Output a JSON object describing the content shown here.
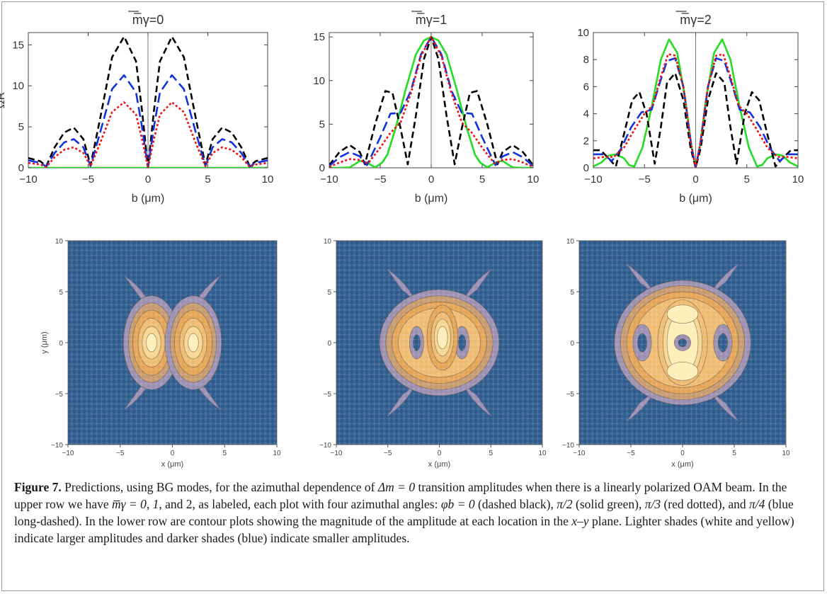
{
  "figure": {
    "caption_label": "Figure 7.",
    "caption_parts": [
      "Predictions, using BG modes, for the azimuthal dependence of ",
      "Δm = 0",
      " transition amplitudes when there is a linearly polarized OAM beam. In the upper row we have ",
      "m̅γ = 0, 1",
      ", and 2, as labeled, each plot with four azimuthal angles: ",
      "φb = 0",
      " (dashed black), ",
      "π/2",
      " (solid green), ",
      "π/3",
      " (red dotted), and ",
      "π/4",
      " (blue long-dashed). In the lower row are contour plots showing the magnitude of the amplitude at each location in the ",
      "x–y",
      " plane. Lighter shades (white and yellow) indicate larger amplitudes and darker shades (blue) indicate smaller amplitudes."
    ]
  },
  "colors": {
    "phi_0": "#000000",
    "phi_pi_2": "#22dd22",
    "phi_pi_3": "#ee1111",
    "phi_pi_4": "#1133dd",
    "contour_background": "#2d5a8c",
    "contour_high": "#fdeeb8",
    "contour_mid": "#e4a456",
    "contour_low": "#9a8fb0"
  },
  "chart_data": [
    {
      "type": "line",
      "title": "m̅γ=0",
      "xlabel": "b (μm)",
      "ylabel": "ΩR",
      "xlim": [
        -10,
        10
      ],
      "ylim": [
        0,
        16.5
      ],
      "xticks": [
        -10,
        -5,
        0,
        5,
        10
      ],
      "yticks": [
        0,
        5,
        10,
        15
      ],
      "series": [
        {
          "style": "dashed black",
          "x": [
            -10,
            -9,
            -8.5,
            -7.8,
            -7,
            -6.2,
            -5.4,
            -4.8,
            -4,
            -3,
            -2,
            -1,
            -0.5,
            0,
            0.5,
            1,
            2,
            3,
            4,
            4.8,
            5.4,
            6.2,
            7,
            7.8,
            8.5,
            9,
            10
          ],
          "y": [
            1.2,
            0.8,
            0.2,
            2.5,
            4.3,
            4.9,
            3.5,
            0.3,
            6,
            13.5,
            16,
            13,
            7,
            0,
            7,
            13,
            16,
            13.5,
            6,
            0.3,
            3.5,
            4.9,
            4.3,
            2.5,
            0.2,
            0.8,
            1.2
          ]
        },
        {
          "style": "solid green",
          "x": [
            -10,
            10
          ],
          "y": [
            0,
            0
          ]
        },
        {
          "style": "red dotted",
          "x": [
            -10,
            -9,
            -8.5,
            -7.8,
            -7,
            -6.2,
            -5.4,
            -4.8,
            -4,
            -3,
            -2,
            -1,
            -0.5,
            0,
            0.5,
            1,
            2,
            3,
            4,
            4.8,
            5.4,
            6.2,
            7,
            7.8,
            8.5,
            9,
            10
          ],
          "y": [
            0.6,
            0.4,
            0.1,
            1.3,
            2.2,
            2.5,
            1.8,
            0.2,
            3,
            6.8,
            8,
            6.5,
            3.5,
            0,
            3.5,
            6.5,
            8,
            6.8,
            3,
            0.2,
            1.8,
            2.5,
            2.2,
            1.3,
            0.1,
            0.4,
            0.6
          ]
        },
        {
          "style": "blue long-dashed",
          "x": [
            -10,
            -9,
            -8.5,
            -7.8,
            -7,
            -6.2,
            -5.4,
            -4.8,
            -4,
            -3,
            -2,
            -1,
            -0.5,
            0,
            0.5,
            1,
            2,
            3,
            4,
            4.8,
            5.4,
            6.2,
            7,
            7.8,
            8.5,
            9,
            10
          ],
          "y": [
            0.9,
            0.6,
            0.15,
            1.8,
            3.1,
            3.5,
            2.5,
            0.2,
            4.3,
            9.6,
            11.3,
            9.2,
            5,
            0,
            5,
            9.2,
            11.3,
            9.6,
            4.3,
            0.2,
            2.5,
            3.5,
            3.1,
            1.8,
            0.15,
            0.6,
            0.9
          ]
        }
      ]
    },
    {
      "type": "line",
      "title": "m̅γ=1",
      "xlabel": "b (μm)",
      "ylabel": "",
      "xlim": [
        -10,
        10
      ],
      "ylim": [
        0,
        15.5
      ],
      "xticks": [
        -10,
        -5,
        0,
        5,
        10
      ],
      "yticks": [
        0,
        5,
        10,
        15
      ],
      "series": [
        {
          "style": "dashed black",
          "x": [
            -10,
            -9,
            -8,
            -7,
            -6.5,
            -5.5,
            -4.5,
            -3.8,
            -3,
            -2.3,
            -1.5,
            -0.7,
            0,
            0.7,
            1.5,
            2.3,
            3,
            3.8,
            4.5,
            5.5,
            6.5,
            7,
            8,
            9,
            10
          ],
          "y": [
            0.3,
            1.8,
            2.6,
            1.8,
            0.4,
            5,
            8.8,
            8.6,
            4.5,
            0.4,
            6,
            12.5,
            15,
            12.5,
            6,
            0.4,
            4.5,
            8.6,
            8.8,
            5,
            0.4,
            1.8,
            2.6,
            1.8,
            0.3
          ]
        },
        {
          "style": "solid green",
          "x": [
            -10,
            -9,
            -8,
            -7.5,
            -7,
            -6.3,
            -5.5,
            -4.8,
            -4.3,
            -3.5,
            -2.5,
            -1.5,
            -0.7,
            0,
            0.7,
            1.5,
            2.5,
            3.5,
            4.3,
            4.8,
            5.5,
            6.3,
            7,
            7.5,
            8,
            9,
            10
          ],
          "y": [
            0,
            0,
            0.05,
            0.4,
            0.8,
            0.6,
            0.05,
            0.6,
            1.5,
            4.5,
            9,
            13,
            14.6,
            15,
            14.6,
            13,
            9,
            4.5,
            1.5,
            0.6,
            0.05,
            0.6,
            0.8,
            0.4,
            0.05,
            0,
            0
          ]
        },
        {
          "style": "red dotted",
          "x": [
            -10,
            -9,
            -8,
            -7,
            -6.2,
            -5,
            -4,
            -3,
            -2,
            -1,
            0,
            1,
            2,
            3,
            4,
            5,
            6.2,
            7,
            8,
            9,
            10
          ],
          "y": [
            0.1,
            0.6,
            1,
            0.9,
            0.5,
            2.3,
            4,
            5.2,
            8.5,
            12.8,
            15,
            12.8,
            8.5,
            5.2,
            4,
            2.3,
            0.5,
            0.9,
            1,
            0.6,
            0.1
          ]
        },
        {
          "style": "blue long-dashed",
          "x": [
            -10,
            -9,
            -8,
            -7,
            -6.3,
            -5,
            -4,
            -3,
            -2,
            -1,
            0,
            1,
            2,
            3,
            4,
            5,
            6.3,
            7,
            8,
            9,
            10
          ],
          "y": [
            0.2,
            1.2,
            1.8,
            1.3,
            0.3,
            3.5,
            6.2,
            6.3,
            8.8,
            13,
            15,
            13,
            8.8,
            6.3,
            6.2,
            3.5,
            0.3,
            1.3,
            1.8,
            1.2,
            0.2
          ]
        }
      ]
    },
    {
      "type": "line",
      "title": "m̅γ=2",
      "xlabel": "b (μm)",
      "ylabel": "",
      "xlim": [
        -10,
        10
      ],
      "ylim": [
        0,
        10
      ],
      "xticks": [
        -10,
        -5,
        0,
        5,
        10
      ],
      "yticks": [
        0,
        2,
        4,
        6,
        8,
        10
      ],
      "series": [
        {
          "style": "dashed black",
          "x": [
            -10,
            -9.3,
            -8.5,
            -7.8,
            -7,
            -6.2,
            -5.5,
            -4.8,
            -4,
            -3.4,
            -2.8,
            -2,
            -1.2,
            -0.5,
            0,
            0.5,
            1.2,
            2,
            2.8,
            3.4,
            4,
            4.8,
            5.5,
            6.2,
            7,
            7.8,
            8.5,
            9.3,
            10
          ],
          "y": [
            1.3,
            1.3,
            0.7,
            0.1,
            2.5,
            5,
            5.6,
            4,
            0.3,
            3,
            6.3,
            7,
            5,
            1.5,
            0,
            1.5,
            5,
            7,
            6.3,
            3,
            0.3,
            4,
            5.6,
            5,
            2.5,
            0.1,
            0.7,
            1.3,
            1.3
          ]
        },
        {
          "style": "solid green",
          "x": [
            -10,
            -9.2,
            -8.5,
            -7.8,
            -7,
            -6.5,
            -6,
            -5.2,
            -4.3,
            -3.4,
            -2.6,
            -1.8,
            -1,
            -0.4,
            0,
            0.4,
            1,
            1.8,
            2.6,
            3.4,
            4.3,
            5.2,
            6,
            6.5,
            7,
            7.8,
            8.5,
            9.2,
            10
          ],
          "y": [
            0.1,
            0.4,
            0.9,
            1,
            0.7,
            0.2,
            0.1,
            1.5,
            4.5,
            8,
            9.5,
            8.5,
            5,
            1.5,
            0,
            1.5,
            5,
            8.5,
            9.5,
            8,
            4.5,
            1.5,
            0.1,
            0.2,
            0.7,
            1,
            0.9,
            0.4,
            0.1
          ]
        },
        {
          "style": "red dotted",
          "x": [
            -10,
            -9,
            -8,
            -7,
            -6,
            -5,
            -4.2,
            -3.5,
            -2.7,
            -2,
            -1.2,
            -0.5,
            0,
            0.5,
            1.2,
            2,
            2.7,
            3.5,
            4.2,
            5,
            6,
            7,
            8,
            9,
            10
          ],
          "y": [
            0.7,
            0.8,
            0.8,
            1.5,
            2.8,
            4,
            4.6,
            6.5,
            8.4,
            8.3,
            6,
            2,
            0,
            2,
            6,
            8.3,
            8.4,
            6.5,
            4.6,
            4,
            2.8,
            1.5,
            0.8,
            0.8,
            0.7
          ]
        },
        {
          "style": "blue long-dashed",
          "x": [
            -10,
            -9,
            -8.2,
            -7.3,
            -6.3,
            -5.3,
            -4.3,
            -3.5,
            -2.8,
            -2,
            -1.2,
            -0.5,
            0,
            0.5,
            1.2,
            2,
            2.8,
            3.5,
            4.3,
            5.3,
            6.3,
            7.3,
            8.2,
            9,
            10
          ],
          "y": [
            1,
            1,
            0.5,
            1.4,
            3,
            4.1,
            4.3,
            6.3,
            7.9,
            8.1,
            6,
            2,
            0,
            2,
            6,
            8.1,
            7.9,
            6.3,
            4.3,
            4.1,
            3,
            1.4,
            0.5,
            1,
            1
          ]
        }
      ]
    },
    {
      "type": "heatmap",
      "title": "",
      "xlabel": "x (μm)",
      "ylabel": "y (μm)",
      "xlim": [
        -10,
        10
      ],
      "ylim": [
        -10,
        10
      ],
      "xticks": [
        -10,
        -5,
        0,
        5,
        10
      ],
      "yticks": [
        -10,
        -5,
        0,
        5,
        10
      ]
    },
    {
      "type": "heatmap",
      "title": "",
      "xlabel": "x (μm)",
      "ylabel": "",
      "xlim": [
        -10,
        10
      ],
      "ylim": [
        -10,
        10
      ],
      "xticks": [
        -10,
        -5,
        0,
        5,
        10
      ],
      "yticks": [
        -10,
        -5,
        0,
        5,
        10
      ]
    },
    {
      "type": "heatmap",
      "title": "",
      "xlabel": "x (μm)",
      "ylabel": "",
      "xlim": [
        -10,
        10
      ],
      "ylim": [
        -10,
        10
      ],
      "xticks": [
        -10,
        -5,
        0,
        5,
        10
      ],
      "yticks": [
        -10,
        -5,
        0,
        5,
        10
      ]
    }
  ]
}
